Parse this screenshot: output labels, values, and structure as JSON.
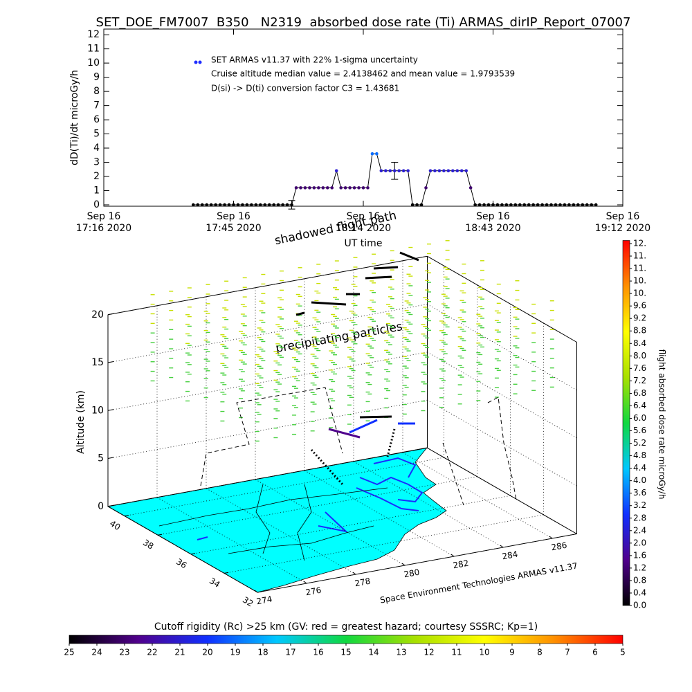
{
  "colormap": [
    "#000000",
    "#50008c",
    "#1030ff",
    "#00c8ff",
    "#10d840",
    "#a8e000",
    "#ffff00",
    "#ff9000",
    "#ff0000"
  ],
  "chart_data": [
    {
      "type": "line",
      "title": "SET_DOE_FM7007  B350   N2319  absorbed dose rate (Ti) ARMAS_dirIP_Report_07007",
      "ylabel": "dD(Ti)/dt microGy/h",
      "xlabel": "UT time",
      "legend": [
        "SET ARMAS v11.37 with 22% 1-sigma uncertainty",
        "Cruise altitude median value = 2.4138462 and mean value = 1.9793539",
        "D(si) -> D(ti) conversion factor C3 = 1.43681"
      ],
      "legend_color": "#1e2cff",
      "line_color": "#000000",
      "x": [
        "17:36",
        "17:37",
        "17:38",
        "17:39",
        "17:40",
        "17:41",
        "17:42",
        "17:43",
        "17:44",
        "17:45",
        "17:46",
        "17:47",
        "17:48",
        "17:49",
        "17:50",
        "17:51",
        "17:52",
        "17:53",
        "17:54",
        "17:55",
        "17:56",
        "17:57",
        "17:58",
        "17:59",
        "18:00",
        "18:01",
        "18:02",
        "18:03",
        "18:04",
        "18:05",
        "18:06",
        "18:07",
        "18:08",
        "18:09",
        "18:10",
        "18:11",
        "18:12",
        "18:13",
        "18:14",
        "18:15",
        "18:16",
        "18:17",
        "18:18",
        "18:19",
        "18:20",
        "18:21",
        "18:22",
        "18:23",
        "18:24",
        "18:25",
        "18:26",
        "18:27",
        "18:28",
        "18:29",
        "18:30",
        "18:31",
        "18:32",
        "18:33",
        "18:34",
        "18:35",
        "18:36",
        "18:37",
        "18:38",
        "18:39",
        "18:40",
        "18:41",
        "18:42",
        "18:43",
        "18:44",
        "18:45",
        "18:46",
        "18:47",
        "18:48",
        "18:49",
        "18:50",
        "18:51",
        "18:52",
        "18:53",
        "18:54",
        "18:55",
        "18:56",
        "18:57",
        "18:58",
        "18:59",
        "19:00",
        "19:01",
        "19:02",
        "19:03",
        "19:04",
        "19:05",
        "19:06"
      ],
      "values": [
        0,
        0,
        0,
        0,
        0,
        0,
        0,
        0,
        0,
        0,
        0,
        0,
        0,
        0,
        0,
        0,
        0,
        0,
        0,
        0,
        0,
        0,
        0,
        1.2,
        1.2,
        1.2,
        1.2,
        1.2,
        1.2,
        1.2,
        1.2,
        1.2,
        2.4,
        1.2,
        1.2,
        1.2,
        1.2,
        1.2,
        1.2,
        1.2,
        3.6,
        3.6,
        2.4,
        2.4,
        2.4,
        2.4,
        2.4,
        2.4,
        2.4,
        0,
        0,
        0,
        1.2,
        2.4,
        2.4,
        2.4,
        2.4,
        2.4,
        2.4,
        2.4,
        2.4,
        2.4,
        1.2,
        0,
        0,
        0,
        0,
        0,
        0,
        0,
        0,
        0,
        0,
        0,
        0,
        0,
        0,
        0,
        0,
        0,
        0,
        0,
        0,
        0,
        0,
        0,
        0,
        0,
        0,
        0,
        0
      ],
      "error_bars": [
        {
          "x": "17:58",
          "value": 0,
          "error": 0.3
        },
        {
          "x": "18:21",
          "value": 2.4,
          "error": 0.6
        }
      ],
      "xlim": [
        "17:16",
        "19:12"
      ],
      "xticks": [
        {
          "value": "17:16",
          "label": [
            "Sep 16",
            "17:16 2020"
          ]
        },
        {
          "value": "17:45",
          "label": [
            "Sep 16",
            "17:45 2020"
          ]
        },
        {
          "value": "18:14",
          "label": [
            "Sep 16",
            "18:14 2020"
          ]
        },
        {
          "value": "18:43",
          "label": [
            "Sep 16",
            "18:43 2020"
          ]
        },
        {
          "value": "19:12",
          "label": [
            "Sep 16",
            "19:12 2020"
          ]
        }
      ],
      "ylim": [
        -0.1,
        12.4
      ],
      "yticks": [
        0,
        1,
        2,
        3,
        4,
        5,
        6,
        7,
        8,
        9,
        10,
        11,
        12
      ]
    },
    {
      "type": "altitude3d",
      "zlabel": "Altitude (km)",
      "zlim": [
        0,
        20
      ],
      "zticks": [
        0,
        5,
        10,
        15,
        20
      ],
      "latlim": [
        32,
        41
      ],
      "latticks": [
        40,
        38,
        36,
        34,
        32
      ],
      "lonlim": [
        274,
        287
      ],
      "lonticks": [
        274,
        276,
        278,
        280,
        282,
        284,
        286
      ],
      "grid": true,
      "annotations": [
        "shadowed flight path",
        "precipitating particles",
        "Space Environment Technologies ARMAS v11.37"
      ],
      "colorbar": {
        "label": "flight absorbed dose rate microGy/h",
        "ylim": [
          0,
          11.7
        ],
        "clim": [
          0,
          12
        ],
        "ticks": [
          {
            "value": 0,
            "label": "0.0"
          },
          0.4,
          0.8,
          1.2,
          1.6,
          {
            "value": 2,
            "label": "2.0"
          },
          2.4,
          2.8,
          3.2,
          3.6,
          {
            "value": 4,
            "label": "4.0"
          },
          4.4,
          4.8,
          5.2,
          5.6,
          {
            "value": 6,
            "label": "6.0"
          },
          6.4,
          6.8,
          7.2,
          7.6,
          {
            "value": 8,
            "label": "8.0"
          },
          8.4,
          8.8,
          9.2,
          9.6,
          {
            "value": 10,
            "label": "10."
          },
          {
            "value": 10.4,
            "label": "10."
          },
          {
            "value": 10.8,
            "label": "11."
          },
          {
            "value": 11.2,
            "label": "11."
          },
          {
            "value": 11.6,
            "label": "12."
          }
        ]
      }
    },
    {
      "type": "colorbar",
      "title": "Cutoff rigidity (Rc) >25 km (GV: red = greatest hazard; courtesy SSSRC; Kp=1)",
      "xlim": [
        25,
        5
      ],
      "xticks": [
        25,
        24,
        23,
        22,
        21,
        20,
        19,
        18,
        17,
        16,
        15,
        14,
        13,
        12,
        11,
        10,
        9,
        8,
        7,
        6,
        5
      ]
    }
  ]
}
